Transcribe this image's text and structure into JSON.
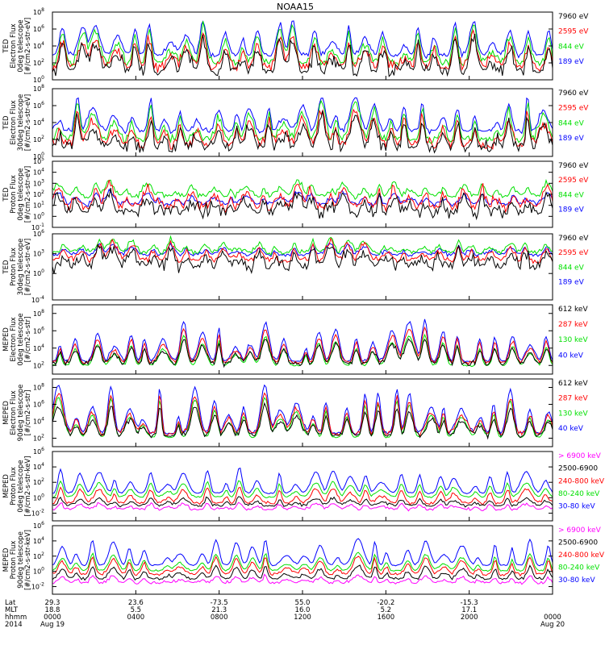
{
  "title": "NOAA15",
  "colors": {
    "black": "#000000",
    "red": "#ff0000",
    "green": "#00e000",
    "blue": "#0000ff",
    "magenta": "#ff00ff"
  },
  "chart_data": [
    {
      "type": "line",
      "panel": "ted-electron-0deg",
      "ylabel": [
        "TED",
        "Electron Flux",
        "0deg telescope",
        "[#/cm2-s-str-eV]"
      ],
      "ylog": true,
      "ylim_exp": [
        0,
        8
      ],
      "yticks": [
        "10^0",
        "10^2",
        "10^4",
        "10^6",
        "10^8"
      ],
      "series": [
        {
          "name": "7960 eV",
          "color": "black",
          "base_exp": 1.0,
          "noise": 0.8,
          "peak": 3.5
        },
        {
          "name": "2595 eV",
          "color": "red",
          "base_exp": 1.5,
          "noise": 0.6,
          "peak": 3.5
        },
        {
          "name": "844 eV",
          "color": "green",
          "base_exp": 2.0,
          "noise": 0.5,
          "peak": 4.0
        },
        {
          "name": "189 eV",
          "color": "blue",
          "base_exp": 2.9,
          "noise": 0.3,
          "peak": 3.8
        }
      ]
    },
    {
      "type": "line",
      "panel": "ted-electron-30deg",
      "ylabel": [
        "TED",
        "Electron Flux",
        "30deg telescope",
        "[#/cm2-s-str-eV]"
      ],
      "ylog": true,
      "ylim_exp": [
        0,
        8
      ],
      "yticks": [
        "10^0",
        "10^2",
        "10^4",
        "10^6",
        "10^8"
      ],
      "series": [
        {
          "name": "7960 eV",
          "color": "black",
          "base_exp": 1.0,
          "noise": 0.8,
          "peak": 3.5
        },
        {
          "name": "2595 eV",
          "color": "red",
          "base_exp": 1.5,
          "noise": 0.6,
          "peak": 3.5
        },
        {
          "name": "844 eV",
          "color": "green",
          "base_exp": 2.0,
          "noise": 0.5,
          "peak": 4.0
        },
        {
          "name": "189 eV",
          "color": "blue",
          "base_exp": 3.0,
          "noise": 0.3,
          "peak": 3.6
        }
      ]
    },
    {
      "type": "line",
      "panel": "ted-proton-0deg",
      "ylabel": [
        "TED",
        "Proton Flux",
        "0deg telescope",
        "[#/cm2-s-str-eV]"
      ],
      "ylog": true,
      "ylim_exp": [
        -1,
        5
      ],
      "yticks": [
        "10^-1",
        "10^0",
        "10^1",
        "10^2",
        "10^3",
        "10^4",
        "10^5"
      ],
      "series": [
        {
          "name": "7960 eV",
          "color": "black",
          "base_exp": 0.3,
          "noise": 0.6,
          "peak": 1.5
        },
        {
          "name": "2595 eV",
          "color": "red",
          "base_exp": 0.8,
          "noise": 0.5,
          "peak": 1.8
        },
        {
          "name": "844 eV",
          "color": "green",
          "base_exp": 1.8,
          "noise": 0.25,
          "peak": 1.2
        },
        {
          "name": "189 eV",
          "color": "blue",
          "base_exp": 1.1,
          "noise": 0.2,
          "peak": 1.0
        }
      ]
    },
    {
      "type": "line",
      "panel": "ted-proton-30deg",
      "ylabel": [
        "TED",
        "Proton Flux",
        "30deg telescope",
        "[#/cm2-s-str-eV]"
      ],
      "ylog": true,
      "ylim_exp": [
        -4,
        6
      ],
      "yticks": [
        "10^-4",
        "10^0",
        "10^3",
        "10^6"
      ],
      "series": [
        {
          "name": "7960 eV",
          "color": "black",
          "base_exp": 1.2,
          "noise": 1.0,
          "peak": 2.5
        },
        {
          "name": "2595 eV",
          "color": "red",
          "base_exp": 2.0,
          "noise": 0.5,
          "peak": 2.5
        },
        {
          "name": "844 eV",
          "color": "green",
          "base_exp": 3.2,
          "noise": 0.4,
          "peak": 1.8
        },
        {
          "name": "189 eV",
          "color": "blue",
          "base_exp": 2.8,
          "noise": 0.3,
          "peak": 1.5
        }
      ]
    },
    {
      "type": "line",
      "panel": "meped-electron-0deg",
      "ylabel": [
        "MEPED",
        "Electron Flux",
        "0deg telescope",
        "[#/cm2-s-str]"
      ],
      "ylog": true,
      "ylim_exp": [
        1,
        9
      ],
      "yticks": [
        "10^2",
        "10^4",
        "10^6",
        "10^8"
      ],
      "series": [
        {
          "name": "612 keV",
          "color": "black",
          "base_exp": 2.2,
          "noise": 0.3,
          "peak": 2.5
        },
        {
          "name": "287 keV",
          "color": "red",
          "base_exp": 2.3,
          "noise": 0.2,
          "peak": 3.5
        },
        {
          "name": "130 keV",
          "color": "green",
          "base_exp": 2.0,
          "noise": 0.1,
          "peak": 3.0
        },
        {
          "name": "40 keV",
          "color": "blue",
          "base_exp": 2.5,
          "noise": 0.2,
          "peak": 4.0
        }
      ]
    },
    {
      "type": "line",
      "panel": "meped-electron-90deg",
      "ylabel": [
        "MEPED",
        "Electron Flux",
        "90deg telescope",
        "[#/cm2-s-str]"
      ],
      "ylog": true,
      "ylim_exp": [
        1,
        9
      ],
      "yticks": [
        "10^2",
        "10^4",
        "10^6",
        "10^8"
      ],
      "series": [
        {
          "name": "612 keV",
          "color": "black",
          "base_exp": 2.3,
          "noise": 0.3,
          "peak": 3.0
        },
        {
          "name": "287 keV",
          "color": "red",
          "base_exp": 2.5,
          "noise": 0.3,
          "peak": 4.0
        },
        {
          "name": "130 keV",
          "color": "green",
          "base_exp": 2.1,
          "noise": 0.1,
          "peak": 4.0
        },
        {
          "name": "40 keV",
          "color": "blue",
          "base_exp": 2.6,
          "noise": 0.2,
          "peak": 4.8
        }
      ]
    },
    {
      "type": "line",
      "panel": "meped-proton-0deg",
      "ylabel": [
        "MEPED",
        "Proton Flux",
        "0deg telescope",
        "[#/cm2-s-str-keV]"
      ],
      "ylog": true,
      "ylim_exp": [
        -3,
        6
      ],
      "yticks": [
        "10^-2",
        "10^0",
        "10^2",
        "10^4",
        "10^6"
      ],
      "series": [
        {
          "name": "> 6900 keV",
          "color": "magenta",
          "base_exp": -1.5,
          "noise": 0.2,
          "peak": 0.8
        },
        {
          "name": "2500-6900",
          "color": "black",
          "base_exp": -1.0,
          "noise": 0.2,
          "peak": 1.0
        },
        {
          "name": "240-800 keV",
          "color": "red",
          "base_exp": -0.7,
          "noise": 0.2,
          "peak": 2.0
        },
        {
          "name": "80-240 keV",
          "color": "green",
          "base_exp": 0.1,
          "noise": 0.1,
          "peak": 2.0
        },
        {
          "name": "30-80 keV",
          "color": "blue",
          "base_exp": 0.6,
          "noise": 0.1,
          "peak": 3.0
        }
      ]
    },
    {
      "type": "line",
      "panel": "meped-proton-90deg",
      "ylabel": [
        "MEPED",
        "Proton Flux",
        "90deg telescope",
        "[#/cm2-s-str-keV]"
      ],
      "ylog": true,
      "ylim_exp": [
        -3,
        6
      ],
      "yticks": [
        "10^-2",
        "10^0",
        "10^2",
        "10^4",
        "10^6"
      ],
      "series": [
        {
          "name": "> 6900 keV",
          "color": "magenta",
          "base_exp": -1.5,
          "noise": 0.2,
          "peak": 0.8
        },
        {
          "name": "2500-6900",
          "color": "black",
          "base_exp": -1.0,
          "noise": 0.2,
          "peak": 1.5
        },
        {
          "name": "240-800 keV",
          "color": "red",
          "base_exp": -0.4,
          "noise": 0.2,
          "peak": 2.0
        },
        {
          "name": "80-240 keV",
          "color": "green",
          "base_exp": 0.1,
          "noise": 0.1,
          "peak": 2.0
        },
        {
          "name": "30-80 keV",
          "color": "blue",
          "base_exp": 0.8,
          "noise": 0.1,
          "peak": 3.0
        }
      ]
    }
  ],
  "xaxis": {
    "row_labels": [
      "Lat",
      "MLT",
      "hhmm",
      "2014"
    ],
    "ticks": [
      {
        "lat": "29.3",
        "mlt": "18.8",
        "hhmm": "0000",
        "date": "Aug 19"
      },
      {
        "lat": "23.6",
        "mlt": "5.5",
        "hhmm": "0400",
        "date": ""
      },
      {
        "lat": "-73.5",
        "mlt": "21.3",
        "hhmm": "0800",
        "date": ""
      },
      {
        "lat": "55.0",
        "mlt": "16.0",
        "hhmm": "1200",
        "date": ""
      },
      {
        "lat": "-20.2",
        "mlt": "5.2",
        "hhmm": "1600",
        "date": ""
      },
      {
        "lat": "-15.3",
        "mlt": "17.1",
        "hhmm": "2000",
        "date": ""
      },
      {
        "lat": "",
        "mlt": "",
        "hhmm": "0000",
        "date": "Aug 20"
      }
    ]
  }
}
